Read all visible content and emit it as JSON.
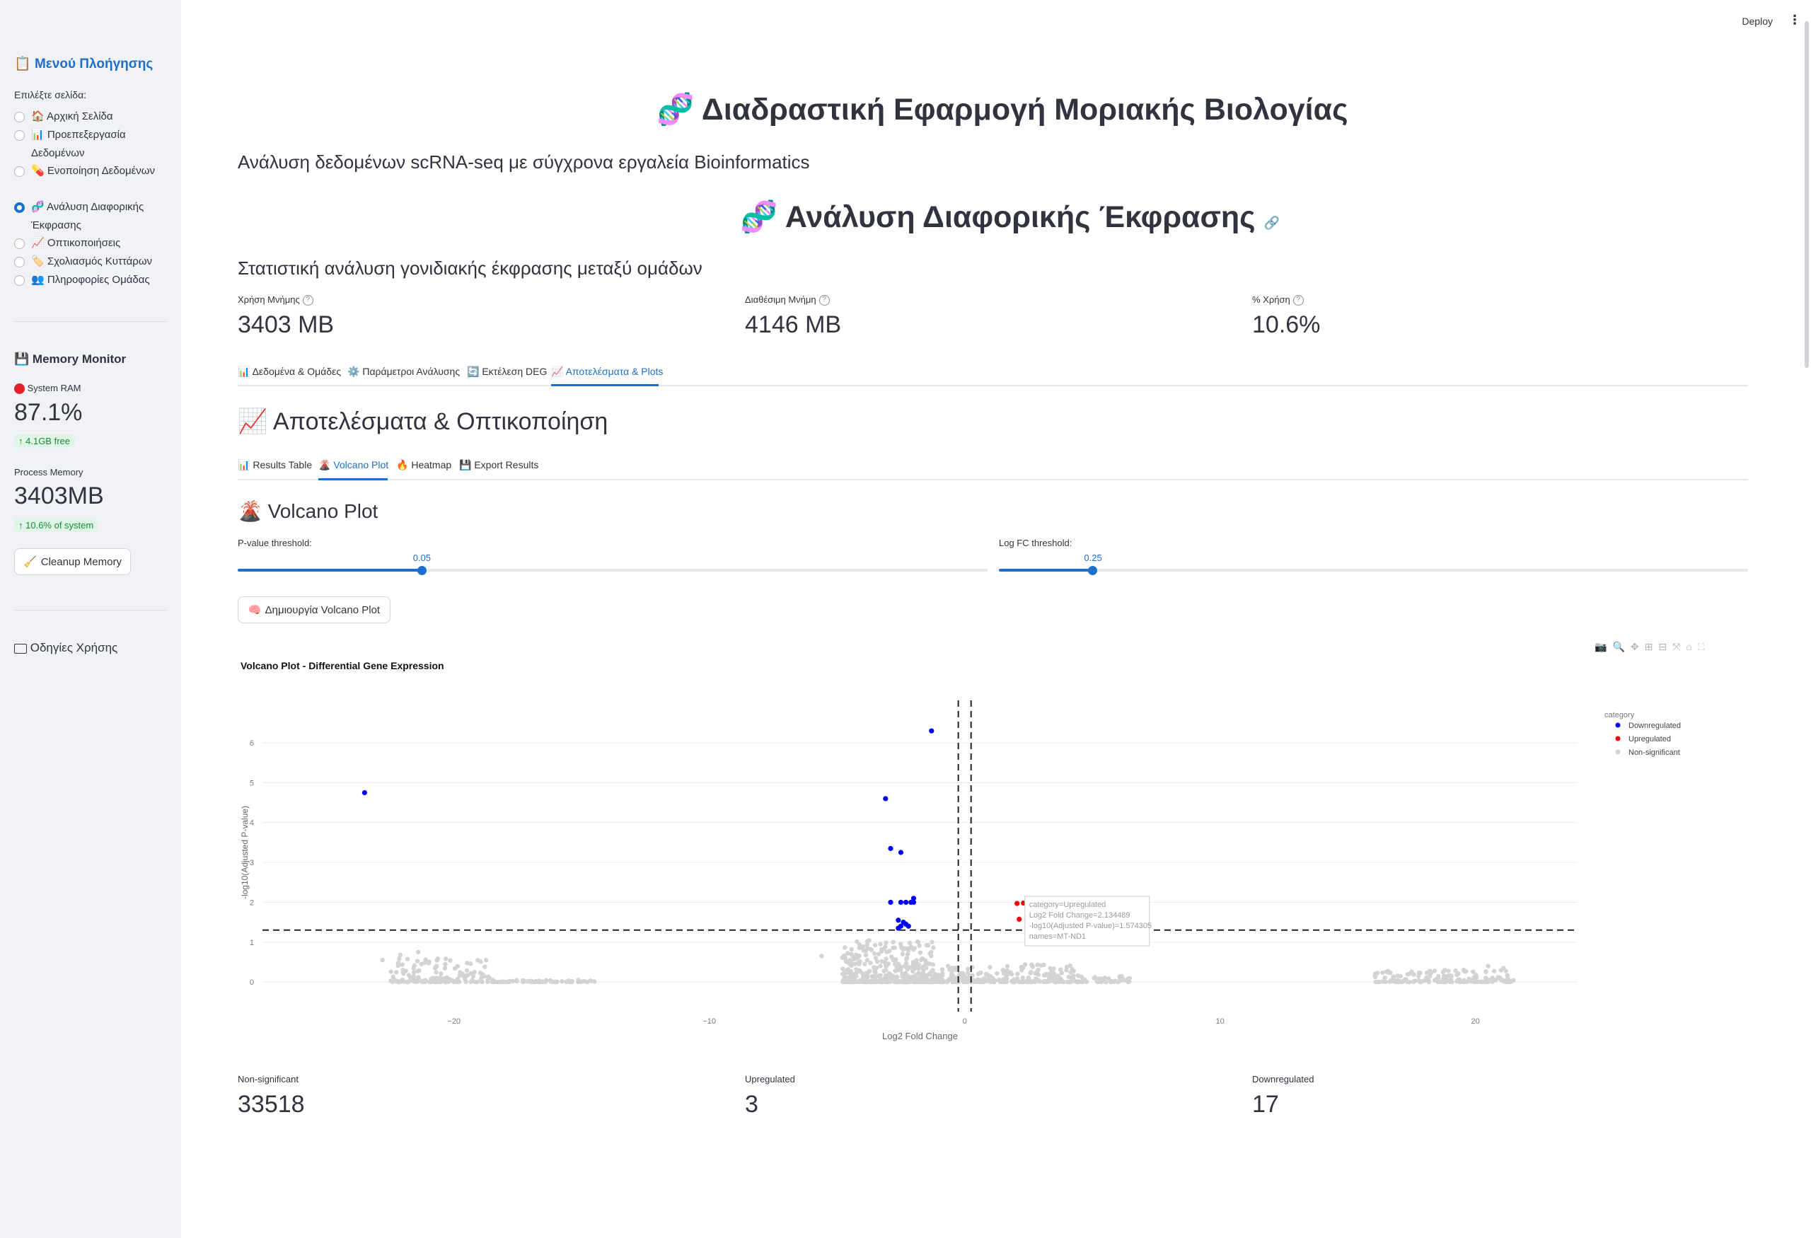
{
  "sidebar": {
    "title": "Μενού Πλοήγησης",
    "select_label": "Επιλέξτε σελίδα:",
    "nav": [
      {
        "icon": "🏠",
        "label": "Αρχική Σελίδα",
        "selected": false
      },
      {
        "icon": "📊",
        "label": "Προεπεξεργασία Δεδομένων",
        "selected": false
      },
      {
        "icon": "💊",
        "label": "Ενοποίηση Δεδομένων",
        "selected": false
      },
      {
        "icon": "🧬",
        "label": "Ανάλυση Διαφορικής Έκφρασης",
        "selected": true
      },
      {
        "icon": "📈",
        "label": "Οπτικοποιήσεις",
        "selected": false
      },
      {
        "icon": "🏷️",
        "label": "Σχολιασμός Κυττάρων",
        "selected": false
      },
      {
        "icon": "👥",
        "label": "Πληροφορίες Ομάδας",
        "selected": false
      }
    ],
    "memory_title": "Memory Monitor",
    "system_ram_label": "System RAM",
    "system_ram_value": "87.1%",
    "system_ram_delta": "4.1GB free",
    "process_memory_label": "Process Memory",
    "process_memory_value": "3403MB",
    "process_memory_delta": "10.6% of system",
    "cleanup_button": "Cleanup Memory",
    "guide_title": "Οδηγίες Χρήσης"
  },
  "header": {
    "deploy_label": "Deploy"
  },
  "main": {
    "app_title": "Διαδραστική Εφαρμογή Μοριακής Βιολογίας",
    "app_subtitle": "Ανάλυση δεδομένων scRNA-seq με σύγχρονα εργαλεία Bioinformatics",
    "page_title": "Ανάλυση Διαφορικής Έκφρασης",
    "page_subtitle": "Στατιστική ανάλυση γονιδιακής έκφρασης μεταξύ ομάδων",
    "metrics": [
      {
        "label": "Χρήση Μνήμης",
        "value": "3403 MB"
      },
      {
        "label": "Διαθέσιμη Μνήμη",
        "value": "4146 MB"
      },
      {
        "label": "% Χρήση",
        "value": "10.6%"
      }
    ],
    "tabs": [
      {
        "icon": "📊",
        "label": "Δεδομένα & Ομάδες"
      },
      {
        "icon": "⚙️",
        "label": "Παράμετροι Ανάλυσης"
      },
      {
        "icon": "🔄",
        "label": "Εκτέλεση DEG"
      },
      {
        "icon": "📈",
        "label": "Αποτελέσματα & Plots"
      }
    ],
    "results_title": "Αποτελέσματα & Οπτικοποίηση",
    "subtabs": [
      {
        "icon": "📊",
        "label": "Results Table"
      },
      {
        "icon": "🌋",
        "label": "Volcano Plot"
      },
      {
        "icon": "🔥",
        "label": "Heatmap"
      },
      {
        "icon": "💾",
        "label": "Export Results"
      }
    ],
    "volcano_title": "Volcano Plot",
    "pvalue_label": "P-value threshold:",
    "pvalue_value": "0.05",
    "pvalue_fraction": 0.245,
    "logfc_label": "Log FC threshold:",
    "logfc_value": "0.25",
    "logfc_fraction": 0.125,
    "create_button": "Δημιουργία Volcano Plot",
    "summary": [
      {
        "label": "Non-significant",
        "value": "33518"
      },
      {
        "label": "Upregulated",
        "value": "3"
      },
      {
        "label": "Downregulated",
        "value": "17"
      }
    ]
  },
  "chart_data": {
    "type": "scatter",
    "title": "Volcano Plot - Differential Gene Expression",
    "xlabel": "Log2 Fold Change",
    "ylabel": "-log10(Adjusted P-value)",
    "xlim": [
      -27.5,
      24
    ],
    "ylim": [
      -0.3,
      6.8
    ],
    "xticks": [
      -20,
      -10,
      0,
      10,
      20
    ],
    "yticks": [
      0,
      1,
      2,
      3,
      4,
      5,
      6
    ],
    "hline": 1.30103,
    "vlines": [
      -0.25,
      0.25
    ],
    "legend_title": "category",
    "legend_position": "top-right",
    "colors": {
      "Downregulated": "#0000ff",
      "Upregulated": "#ff0000",
      "Non-significant": "#d3d3d3"
    },
    "series": [
      {
        "name": "Downregulated",
        "points": [
          [
            -1.3,
            6.3
          ],
          [
            -23.5,
            4.75
          ],
          [
            -3.1,
            4.6
          ],
          [
            -2.9,
            3.35
          ],
          [
            -2.5,
            3.25
          ],
          [
            -2.9,
            2.0
          ],
          [
            -2.5,
            2.0
          ],
          [
            -2.3,
            2.0
          ],
          [
            -2.1,
            2.0
          ],
          [
            -2.0,
            2.0
          ],
          [
            -2.0,
            2.1
          ],
          [
            -2.6,
            1.55
          ],
          [
            -2.5,
            1.4
          ],
          [
            -2.3,
            1.45
          ],
          [
            -2.6,
            1.35
          ],
          [
            -2.2,
            1.4
          ],
          [
            -2.4,
            1.5
          ]
        ]
      },
      {
        "name": "Upregulated",
        "points": [
          [
            2.134489,
            1.574305
          ],
          [
            2.05,
            1.97
          ],
          [
            2.3,
            1.98
          ]
        ]
      },
      {
        "name": "Non-significant",
        "description_ranges": [
          [
            -23,
            -18
          ],
          [
            -6,
            4
          ],
          [
            6,
            7
          ],
          [
            16,
            21.5
          ]
        ]
      }
    ],
    "hover": {
      "category": "category=Upregulated",
      "fc": "Log2 Fold Change=2.134489",
      "pv": "-log10(Adjusted P-value)=1.574305",
      "name": "names=MT-ND1"
    }
  }
}
